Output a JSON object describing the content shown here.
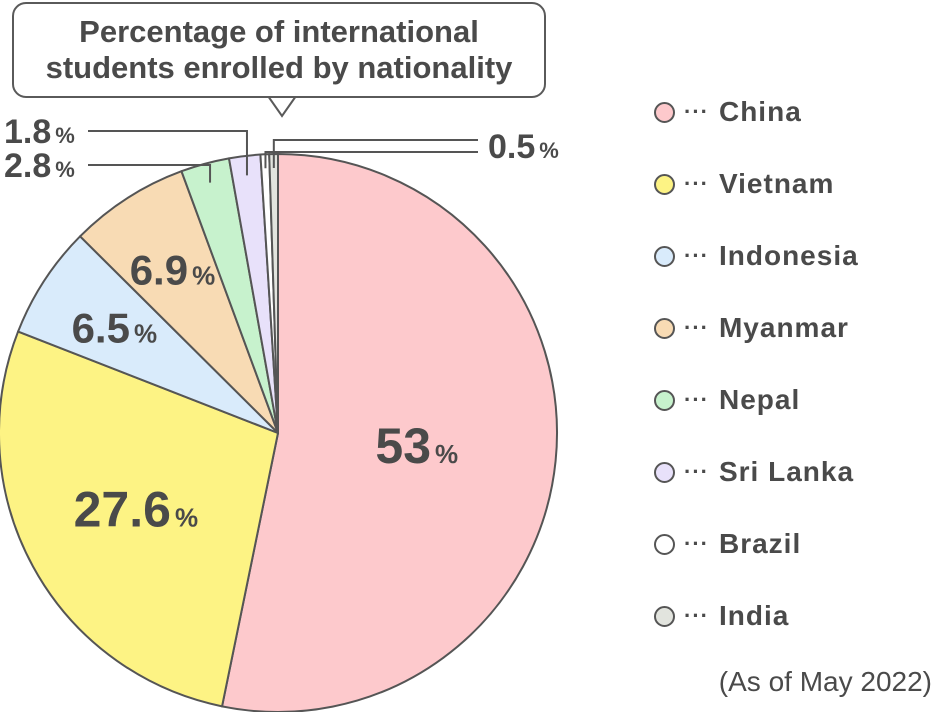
{
  "title_lines": [
    "Percentage of international",
    "students enrolled by nationality"
  ],
  "note": "(As of May 2022)",
  "percent_sign": "%",
  "chart_data": {
    "type": "pie",
    "title": "Percentage of international students enrolled by nationality",
    "slices": [
      {
        "label": "China",
        "value": 53,
        "display": "53",
        "color": "#fdc9cc"
      },
      {
        "label": "Vietnam",
        "value": 27.6,
        "display": "27.6",
        "color": "#fdf384"
      },
      {
        "label": "Indonesia",
        "value": 6.5,
        "display": "6.5",
        "color": "#d9ebfb"
      },
      {
        "label": "Myanmar",
        "value": 6.9,
        "display": "6.9",
        "color": "#f8dbb4"
      },
      {
        "label": "Nepal",
        "value": 2.8,
        "display": "2.8",
        "color": "#c7f2cd"
      },
      {
        "label": "Sri Lanka",
        "value": 1.8,
        "display": "1.8",
        "color": "#e8e1fa"
      },
      {
        "label": "Brazil",
        "value": 0.5,
        "display": "",
        "color": "#ffffff"
      },
      {
        "label": "India",
        "value": 0.5,
        "display": "0.5",
        "color": "#e2e4de"
      }
    ],
    "legend": [
      {
        "label": "China",
        "color": "#fdc9cc"
      },
      {
        "label": "Vietnam",
        "color": "#fdf384"
      },
      {
        "label": "Indonesia",
        "color": "#d9ebfb"
      },
      {
        "label": "Myanmar",
        "color": "#f8dbb4"
      },
      {
        "label": "Nepal",
        "color": "#c7f2cd"
      },
      {
        "label": "Sri Lanka",
        "color": "#e8e1fa"
      },
      {
        "label": "Brazil",
        "color": "#ffffff"
      },
      {
        "label": "India",
        "color": "#e2e4de"
      }
    ],
    "legend_prefix": "···",
    "legend_position": "right",
    "stroke_color": "#555555"
  }
}
